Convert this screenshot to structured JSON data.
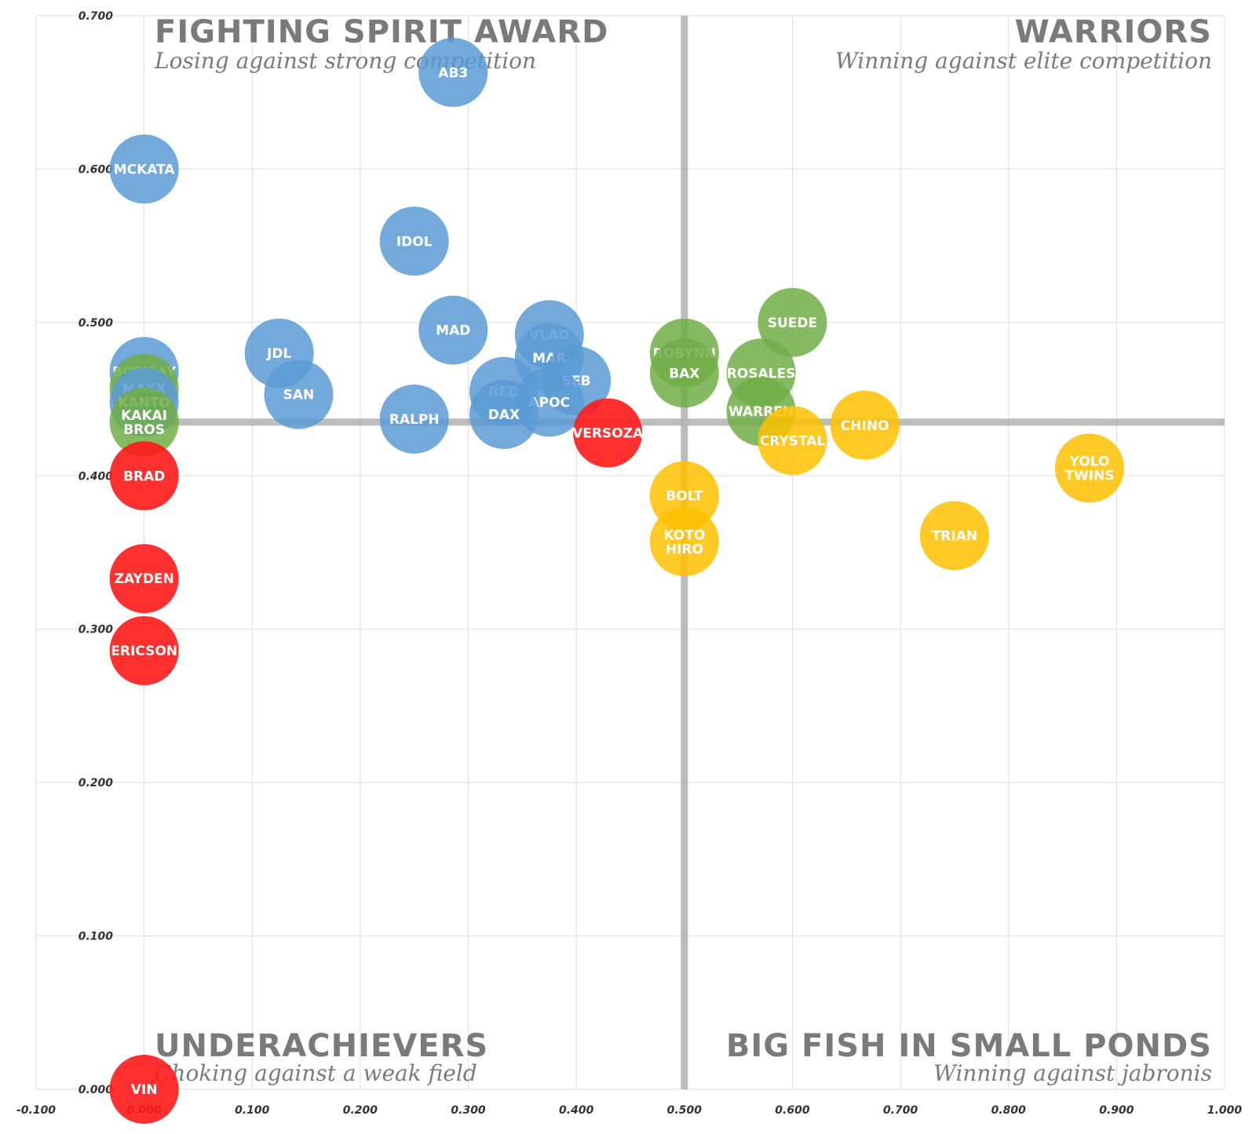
{
  "colors": {
    "blue": "#5b9bd5",
    "green": "#70ad47",
    "yellow": "#ffc000",
    "red": "#ff1a1a",
    "grid": "#dddddd",
    "divider": "#b5b5b5",
    "quadrant_text": "#7a7a7a"
  },
  "chart_data": {
    "type": "scatter",
    "title": "",
    "xlabel": "",
    "ylabel": "",
    "xlim": [
      -0.1,
      1.0
    ],
    "ylim": [
      0.0,
      0.7
    ],
    "x_ticks": [
      "-0.100",
      "0.000",
      "0.100",
      "0.200",
      "0.300",
      "0.400",
      "0.500",
      "0.600",
      "0.700",
      "0.800",
      "0.900",
      "1.000"
    ],
    "y_ticks": [
      "0.000",
      "0.100",
      "0.200",
      "0.300",
      "0.400",
      "0.500",
      "0.600",
      "0.700"
    ],
    "grid": true,
    "dividers": {
      "x": 0.5,
      "y": 0.435
    },
    "quadrants": [
      {
        "id": "top-left",
        "title": "FIGHTING SPIRIT AWARD",
        "subtitle": "Losing against strong competition"
      },
      {
        "id": "top-right",
        "title": "WARRIORS",
        "subtitle": "Winning against elite competition"
      },
      {
        "id": "bottom-left",
        "title": "UNDERACHIEVERS",
        "subtitle": "Choking against a weak field"
      },
      {
        "id": "bottom-right",
        "title": "BIG FISH IN SMALL PONDS",
        "subtitle": "Winning against jabronis"
      }
    ],
    "points": [
      {
        "label": [
          "AB3"
        ],
        "x": 0.286,
        "y": 0.663,
        "color": "blue"
      },
      {
        "label": [
          "MCKATA"
        ],
        "x": 0.0,
        "y": 0.6,
        "color": "blue"
      },
      {
        "label": [
          "IDOL"
        ],
        "x": 0.25,
        "y": 0.553,
        "color": "blue"
      },
      {
        "label": [
          "MAD"
        ],
        "x": 0.286,
        "y": 0.495,
        "color": "blue"
      },
      {
        "label": [
          "VLAD"
        ],
        "x": 0.375,
        "y": 0.492,
        "color": "blue"
      },
      {
        "label": [
          "JDL"
        ],
        "x": 0.125,
        "y": 0.48,
        "color": "blue"
      },
      {
        "label": [
          "MAR"
        ],
        "x": 0.375,
        "y": 0.477,
        "color": "blue"
      },
      {
        "label": [
          "SEB"
        ],
        "x": 0.4,
        "y": 0.462,
        "color": "blue"
      },
      {
        "label": [
          "SAN"
        ],
        "x": 0.143,
        "y": 0.453,
        "color": "blue"
      },
      {
        "label": [
          "RED"
        ],
        "x": 0.333,
        "y": 0.455,
        "color": "blue"
      },
      {
        "label": [
          "APOC"
        ],
        "x": 0.375,
        "y": 0.448,
        "color": "blue"
      },
      {
        "label": [
          "RALPH"
        ],
        "x": 0.25,
        "y": 0.437,
        "color": "blue"
      },
      {
        "label": [
          "DAX"
        ],
        "x": 0.333,
        "y": 0.44,
        "color": "blue"
      },
      {
        "label": [
          "BOMBAY"
        ],
        "x": 0.0,
        "y": 0.468,
        "color": "blue"
      },
      {
        "label": [
          "MAXX"
        ],
        "x": 0.0,
        "y": 0.457,
        "color": "green"
      },
      {
        "label": [
          "KANTO"
        ],
        "x": 0.0,
        "y": 0.448,
        "color": "blue"
      },
      {
        "label": [
          "KAKAI",
          "BROS"
        ],
        "x": 0.0,
        "y": 0.435,
        "color": "green"
      },
      {
        "label": [
          "ROBYNN"
        ],
        "x": 0.5,
        "y": 0.48,
        "color": "green"
      },
      {
        "label": [
          "BAX"
        ],
        "x": 0.5,
        "y": 0.467,
        "color": "green"
      },
      {
        "label": [
          "SUEDE"
        ],
        "x": 0.6,
        "y": 0.5,
        "color": "green"
      },
      {
        "label": [
          "ROSALES"
        ],
        "x": 0.571,
        "y": 0.467,
        "color": "green"
      },
      {
        "label": [
          "WARREN"
        ],
        "x": 0.571,
        "y": 0.442,
        "color": "green"
      },
      {
        "label": [
          "CHINO"
        ],
        "x": 0.667,
        "y": 0.433,
        "color": "yellow"
      },
      {
        "label": [
          "CRYSTAL"
        ],
        "x": 0.6,
        "y": 0.423,
        "color": "yellow"
      },
      {
        "label": [
          "YOLO",
          "TWINS"
        ],
        "x": 0.875,
        "y": 0.405,
        "color": "yellow"
      },
      {
        "label": [
          "BOLT"
        ],
        "x": 0.5,
        "y": 0.387,
        "color": "yellow"
      },
      {
        "label": [
          "KOTO",
          "HIRO"
        ],
        "x": 0.5,
        "y": 0.357,
        "color": "yellow"
      },
      {
        "label": [
          "TRIAN"
        ],
        "x": 0.75,
        "y": 0.361,
        "color": "yellow"
      },
      {
        "label": [
          "VERSOZA"
        ],
        "x": 0.429,
        "y": 0.428,
        "color": "red"
      },
      {
        "label": [
          "BRAD"
        ],
        "x": 0.0,
        "y": 0.4,
        "color": "red"
      },
      {
        "label": [
          "ZAYDEN"
        ],
        "x": 0.0,
        "y": 0.333,
        "color": "red"
      },
      {
        "label": [
          "ERICSON"
        ],
        "x": 0.0,
        "y": 0.286,
        "color": "red"
      },
      {
        "label": [
          "VIN"
        ],
        "x": 0.0,
        "y": 0.0,
        "color": "red"
      }
    ]
  }
}
